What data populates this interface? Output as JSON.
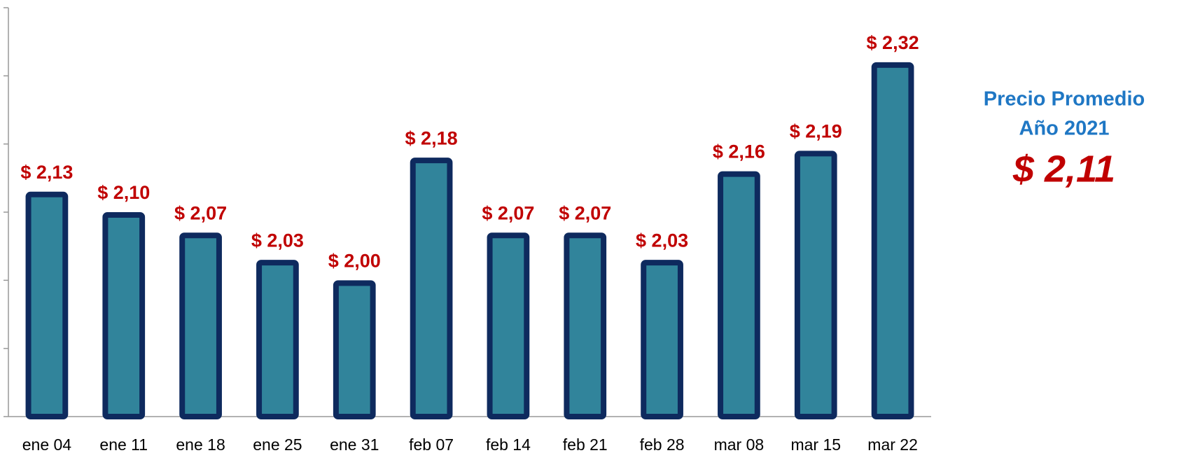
{
  "chart_data": {
    "type": "bar",
    "categories": [
      "ene 04",
      "ene 11",
      "ene 18",
      "ene 25",
      "ene 31",
      "feb 07",
      "feb 14",
      "feb 21",
      "feb 28",
      "mar 08",
      "mar 15",
      "mar 22"
    ],
    "values": [
      2.13,
      2.1,
      2.07,
      2.03,
      2.0,
      2.18,
      2.07,
      2.07,
      2.03,
      2.16,
      2.19,
      2.32
    ],
    "value_labels": [
      "$ 2,13",
      "$ 2,10",
      "$ 2,07",
      "$ 2,03",
      "$ 2,00",
      "$ 2,18",
      "$ 2,07",
      "$ 2,07",
      "$ 2,03",
      "$ 2,16",
      "$ 2,19",
      "$ 2,32"
    ],
    "color": "#31849b",
    "edge_color": "#0e2a5e",
    "ylim": [
      1.8,
      2.4
    ],
    "yticks": [
      1.8,
      1.9,
      2.0,
      2.1,
      2.2,
      2.3,
      2.4
    ],
    "annotations": [
      "Precio Promedio",
      "Año 2021",
      "$ 2,11"
    ]
  }
}
